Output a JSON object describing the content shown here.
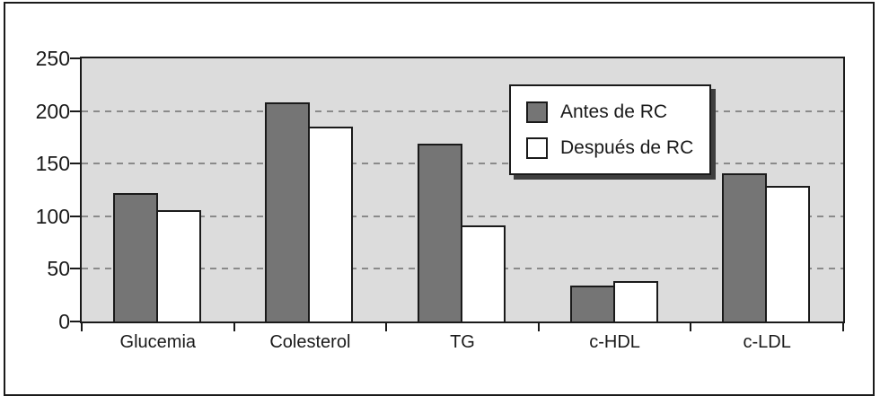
{
  "chart_data": {
    "type": "bar",
    "title": "",
    "xlabel": "",
    "ylabel": "",
    "categories": [
      "Glucemia",
      "Colesterol",
      "TG",
      "c-HDL",
      "c-LDL"
    ],
    "series": [
      {
        "name": "Antes de RC",
        "color": "#757575",
        "values": [
          122,
          208,
          169,
          34,
          141
        ]
      },
      {
        "name": "Después de RC",
        "color": "#ffffff",
        "values": [
          106,
          185,
          91,
          38,
          129
        ]
      }
    ],
    "ylim": [
      0,
      250
    ],
    "yticks": [
      0,
      50,
      100,
      150,
      200,
      250
    ],
    "grid": "horizontal-dashed",
    "legend_position": "top-right",
    "colors": {
      "plot_background": "#dcdcdc",
      "gridline": "#8a8a8a",
      "axis_and_borders": "#1a1a1a",
      "bar_border": "#1a1a1a",
      "legend_shadow": "#3f3f3f",
      "page_background": "#ffffff"
    }
  }
}
